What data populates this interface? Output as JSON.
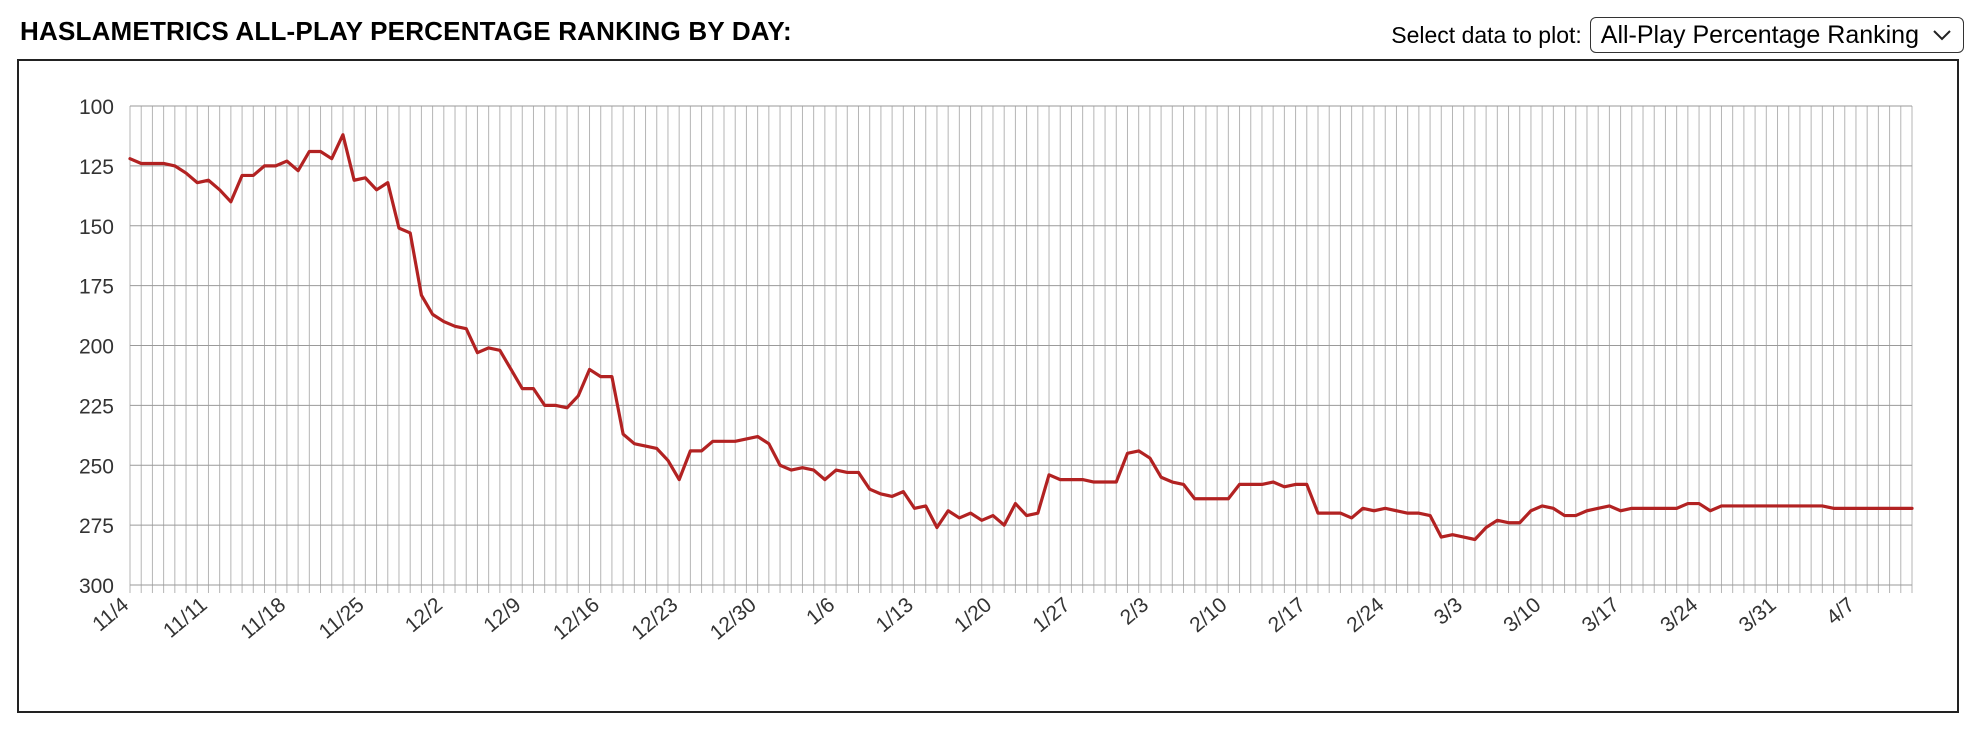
{
  "header": {
    "title": "HASLAMETRICS ALL-PLAY PERCENTAGE RANKING BY DAY:",
    "select_label": "Select data to plot:",
    "select_value": "All-Play Percentage Ranking",
    "chevron_icon": "chevron-down-icon"
  },
  "chart_data": {
    "type": "line",
    "title": "HASLAMETRICS ALL-PLAY PERCENTAGE RANKING BY DAY:",
    "xlabel": "",
    "ylabel": "",
    "y_inverted": true,
    "ylim": [
      100,
      300
    ],
    "yticks": [
      "100",
      "125",
      "150",
      "175",
      "200",
      "225",
      "250",
      "275",
      "300"
    ],
    "xticks": [
      "11/4",
      "11/11",
      "11/18",
      "11/25",
      "12/2",
      "12/9",
      "12/16",
      "12/23",
      "12/30",
      "1/6",
      "1/13",
      "1/20",
      "1/27",
      "2/3",
      "2/10",
      "2/17",
      "2/24",
      "3/3",
      "3/10",
      "3/17",
      "3/24",
      "3/31",
      "4/7"
    ],
    "grid": true,
    "legend": "none",
    "line_color": "#b22222",
    "series": [
      {
        "values": [
          122,
          124,
          124,
          124,
          125,
          128,
          132,
          131,
          135,
          140,
          129,
          129,
          125,
          125,
          123,
          127,
          119,
          119,
          122,
          112,
          131,
          130,
          135,
          132,
          151,
          153,
          179,
          187,
          190,
          192,
          193,
          203,
          201,
          202,
          210,
          218,
          218,
          225,
          225,
          226,
          221,
          210,
          213,
          213,
          237,
          241,
          242,
          243,
          248,
          256,
          244,
          244,
          240,
          240,
          240,
          239,
          238,
          241,
          250,
          252,
          251,
          252,
          256,
          252,
          253,
          253,
          260,
          262,
          263,
          261,
          268,
          267,
          276,
          269,
          272,
          270,
          273,
          271,
          275,
          266,
          271,
          270,
          254,
          256,
          256,
          256,
          257,
          257,
          257,
          245,
          244,
          247,
          255,
          257,
          258,
          264,
          264,
          264,
          264,
          258,
          258,
          258,
          257,
          259,
          258,
          258,
          270,
          270,
          270,
          272,
          268,
          269,
          268,
          269,
          270,
          270,
          271,
          280,
          279,
          280,
          281,
          276,
          273,
          274,
          274,
          269,
          267,
          268,
          271,
          271,
          269,
          268,
          267,
          269,
          268,
          268,
          268,
          268,
          268,
          266,
          266,
          269,
          267,
          267,
          267,
          267,
          267,
          267,
          267,
          267,
          267,
          267,
          268,
          268,
          268,
          268,
          268,
          268,
          268,
          268
        ]
      }
    ]
  }
}
